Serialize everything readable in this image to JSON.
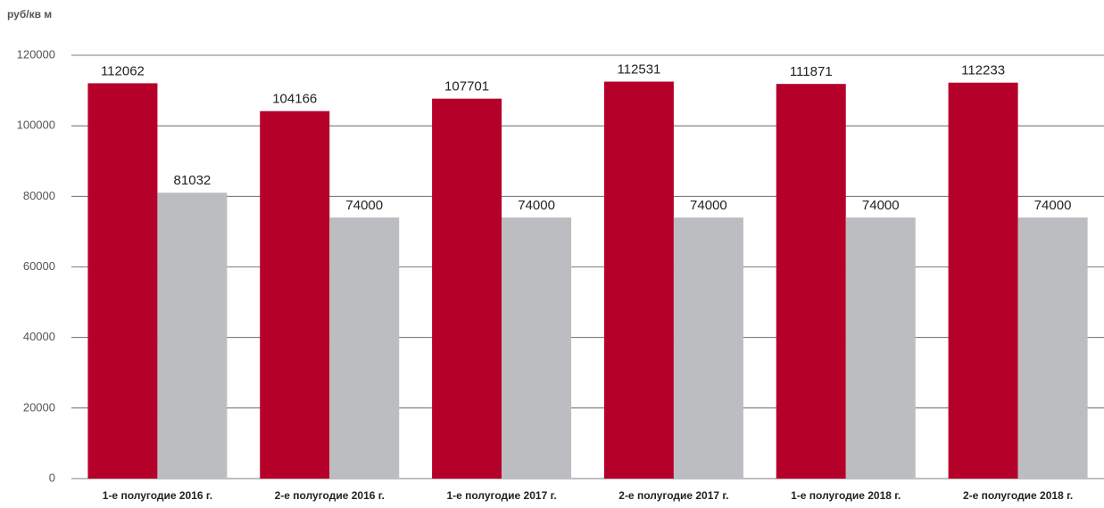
{
  "chart_data": {
    "type": "bar",
    "y_label": "руб/кв м",
    "categories": [
      "1-е полугодие 2016 г.",
      "2-е полугодие 2016 г.",
      "1-е полугодие 2017 г.",
      "2-е полугодие 2017 г.",
      "1-е полугодие 2018 г.",
      "2-е полугодие 2018 г."
    ],
    "series": [
      {
        "color": "#b5002a",
        "values": [
          112062,
          104166,
          107701,
          112531,
          111871,
          112233
        ]
      },
      {
        "color": "#bcbdc0",
        "values": [
          81032,
          74000,
          74000,
          74000,
          74000,
          74000
        ]
      }
    ],
    "ylim": [
      0,
      120000
    ],
    "yticks": [
      0,
      20000,
      40000,
      60000,
      80000,
      100000,
      120000
    ],
    "grid": true
  }
}
